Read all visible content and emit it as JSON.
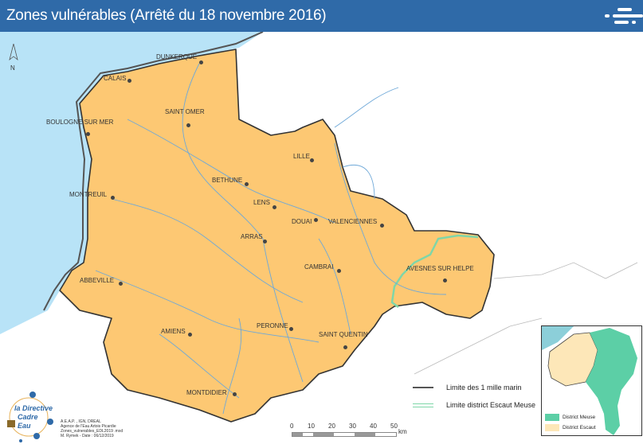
{
  "header": {
    "title": "Zones vulnérables (Arrêté du 18 novembre 2016)",
    "menu_icon": "menu-icon"
  },
  "north_arrow": {
    "label": "N"
  },
  "cities": [
    {
      "name": "DUNKERQUE"
    },
    {
      "name": "CALAIS"
    },
    {
      "name": "BOULOGNE SUR MER"
    },
    {
      "name": "SAINT OMER"
    },
    {
      "name": "LILLE"
    },
    {
      "name": "BETHUNE"
    },
    {
      "name": "MONTREUIL"
    },
    {
      "name": "LENS"
    },
    {
      "name": "DOUAI"
    },
    {
      "name": "VALENCIENNES"
    },
    {
      "name": "ARRAS"
    },
    {
      "name": "CAMBRAI"
    },
    {
      "name": "AVESNES SUR HELPE"
    },
    {
      "name": "ABBEVILLE"
    },
    {
      "name": "PERONNE"
    },
    {
      "name": "AMIENS"
    },
    {
      "name": "SAINT QUENTIN"
    },
    {
      "name": "MONTDIDIER"
    }
  ],
  "legend": {
    "items": [
      {
        "label": "Limite des 1 mille marin",
        "color": "#555555"
      },
      {
        "label": "Limite district Escaut Meuse",
        "color": "#7fd6a8"
      }
    ]
  },
  "scale": {
    "ticks": [
      "0",
      "10",
      "20",
      "30",
      "40",
      "50"
    ],
    "unit": "km"
  },
  "credits": [
    "A.E.A.P. , IGN, DREAL",
    "Agence de l'Eau Artois Picardie",
    "Zones_vulnerables_EDL2019 .mxd",
    "M. Rymek - Date : 06/12/2019"
  ],
  "logo": {
    "text": "la Directive Cadre Eau"
  },
  "inset": {
    "items": [
      {
        "label": "District Meuse",
        "color": "#5ccfa6"
      },
      {
        "label": "District Escaut",
        "color": "#fde7b8"
      }
    ]
  },
  "colors": {
    "header": "#2f6aa8",
    "sea": "#b8e3f7",
    "zone": "#fdc873",
    "river": "#6ea8d8"
  }
}
